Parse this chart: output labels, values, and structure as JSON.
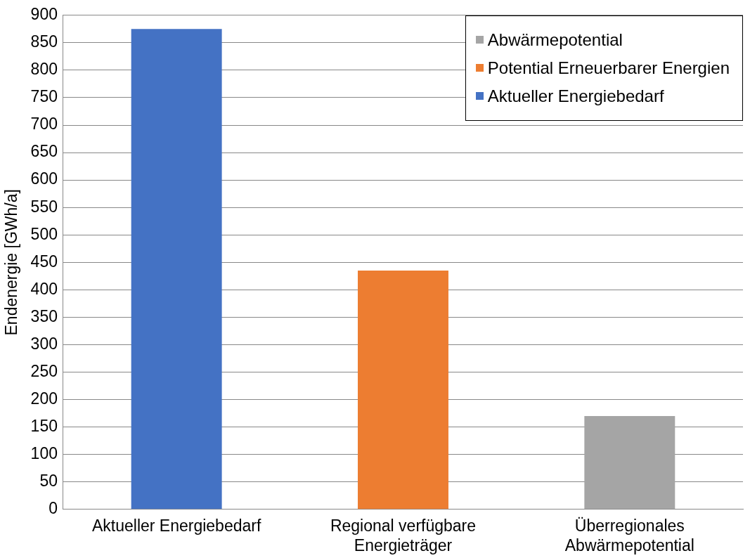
{
  "chart_data": {
    "type": "bar",
    "ylabel": "Endenergie [GWh/a]",
    "categories": [
      "Aktueller Energiebedarf",
      "Regional verfügbare Energieträger",
      "Überregionales Abwärmepotential"
    ],
    "series": [
      {
        "name": "Abwärmepotential",
        "color": "#a5a5a5",
        "values": [
          null,
          null,
          170
        ]
      },
      {
        "name": "Potential Erneuerbarer Energien",
        "color": "#ed7d31",
        "values": [
          null,
          435,
          null
        ]
      },
      {
        "name": "Aktueller Energiebedarf",
        "color": "#4472c4",
        "values": [
          875,
          null,
          null
        ]
      }
    ],
    "stacked": true,
    "ylim": [
      0,
      900
    ],
    "yticks": [
      0,
      50,
      100,
      150,
      200,
      250,
      300,
      350,
      400,
      450,
      500,
      550,
      600,
      650,
      700,
      750,
      800,
      850,
      900
    ],
    "grid": "y",
    "legend": "top right"
  }
}
